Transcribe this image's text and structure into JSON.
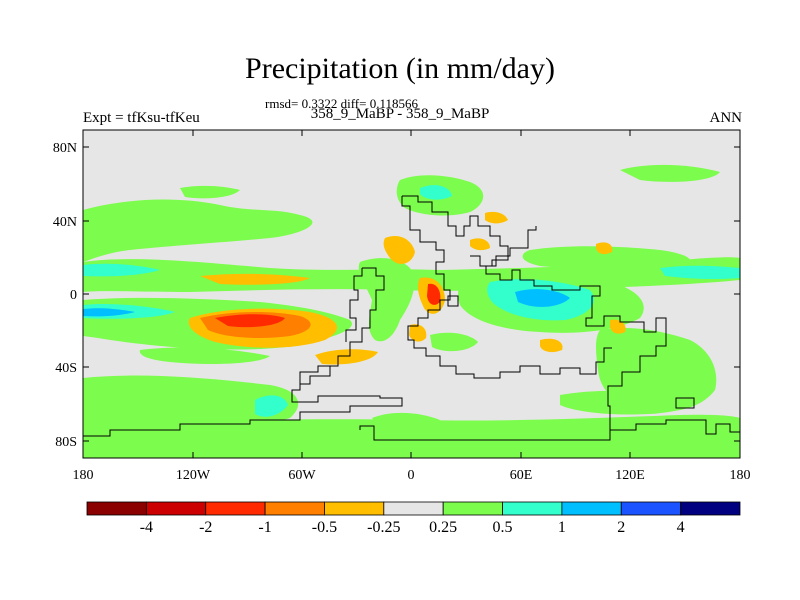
{
  "title": "Precipitation (in mm/day)",
  "stats_line": "rmsd= 0.3322 diff= 0.118566",
  "subtitle": "358_9_MaBP - 358_9_MaBP",
  "left_label": "Expt = tfKsu-tfKeu",
  "right_label": "ANN",
  "lat_ticks": [
    "80N",
    "40N",
    "0",
    "40S",
    "80S"
  ],
  "lon_ticks": [
    "180",
    "120W",
    "60W",
    "0",
    "60E",
    "120E",
    "180"
  ],
  "colorbar": {
    "colors": [
      "#8b0000",
      "#cc0000",
      "#ff2a00",
      "#ff7f00",
      "#ffbf00",
      "#e6e6e6",
      "#7cfc4c",
      "#33ffcc",
      "#00bfff",
      "#1a53ff",
      "#000080"
    ],
    "labels": [
      "-4",
      "-2",
      "-1",
      "-0.5",
      "-0.25",
      "0.25",
      "0.5",
      "1",
      "2",
      "4"
    ]
  },
  "field_colors": {
    "background": "#e6e6e6",
    "pos_light": "#7cfc4c",
    "pos_mid": "#33ffcc",
    "pos_strong": "#00bfff",
    "neg_light": "#ffbf00",
    "neg_mid": "#ff7f00",
    "neg_strong": "#ff2a00",
    "neg_max": "#cc0000"
  }
}
